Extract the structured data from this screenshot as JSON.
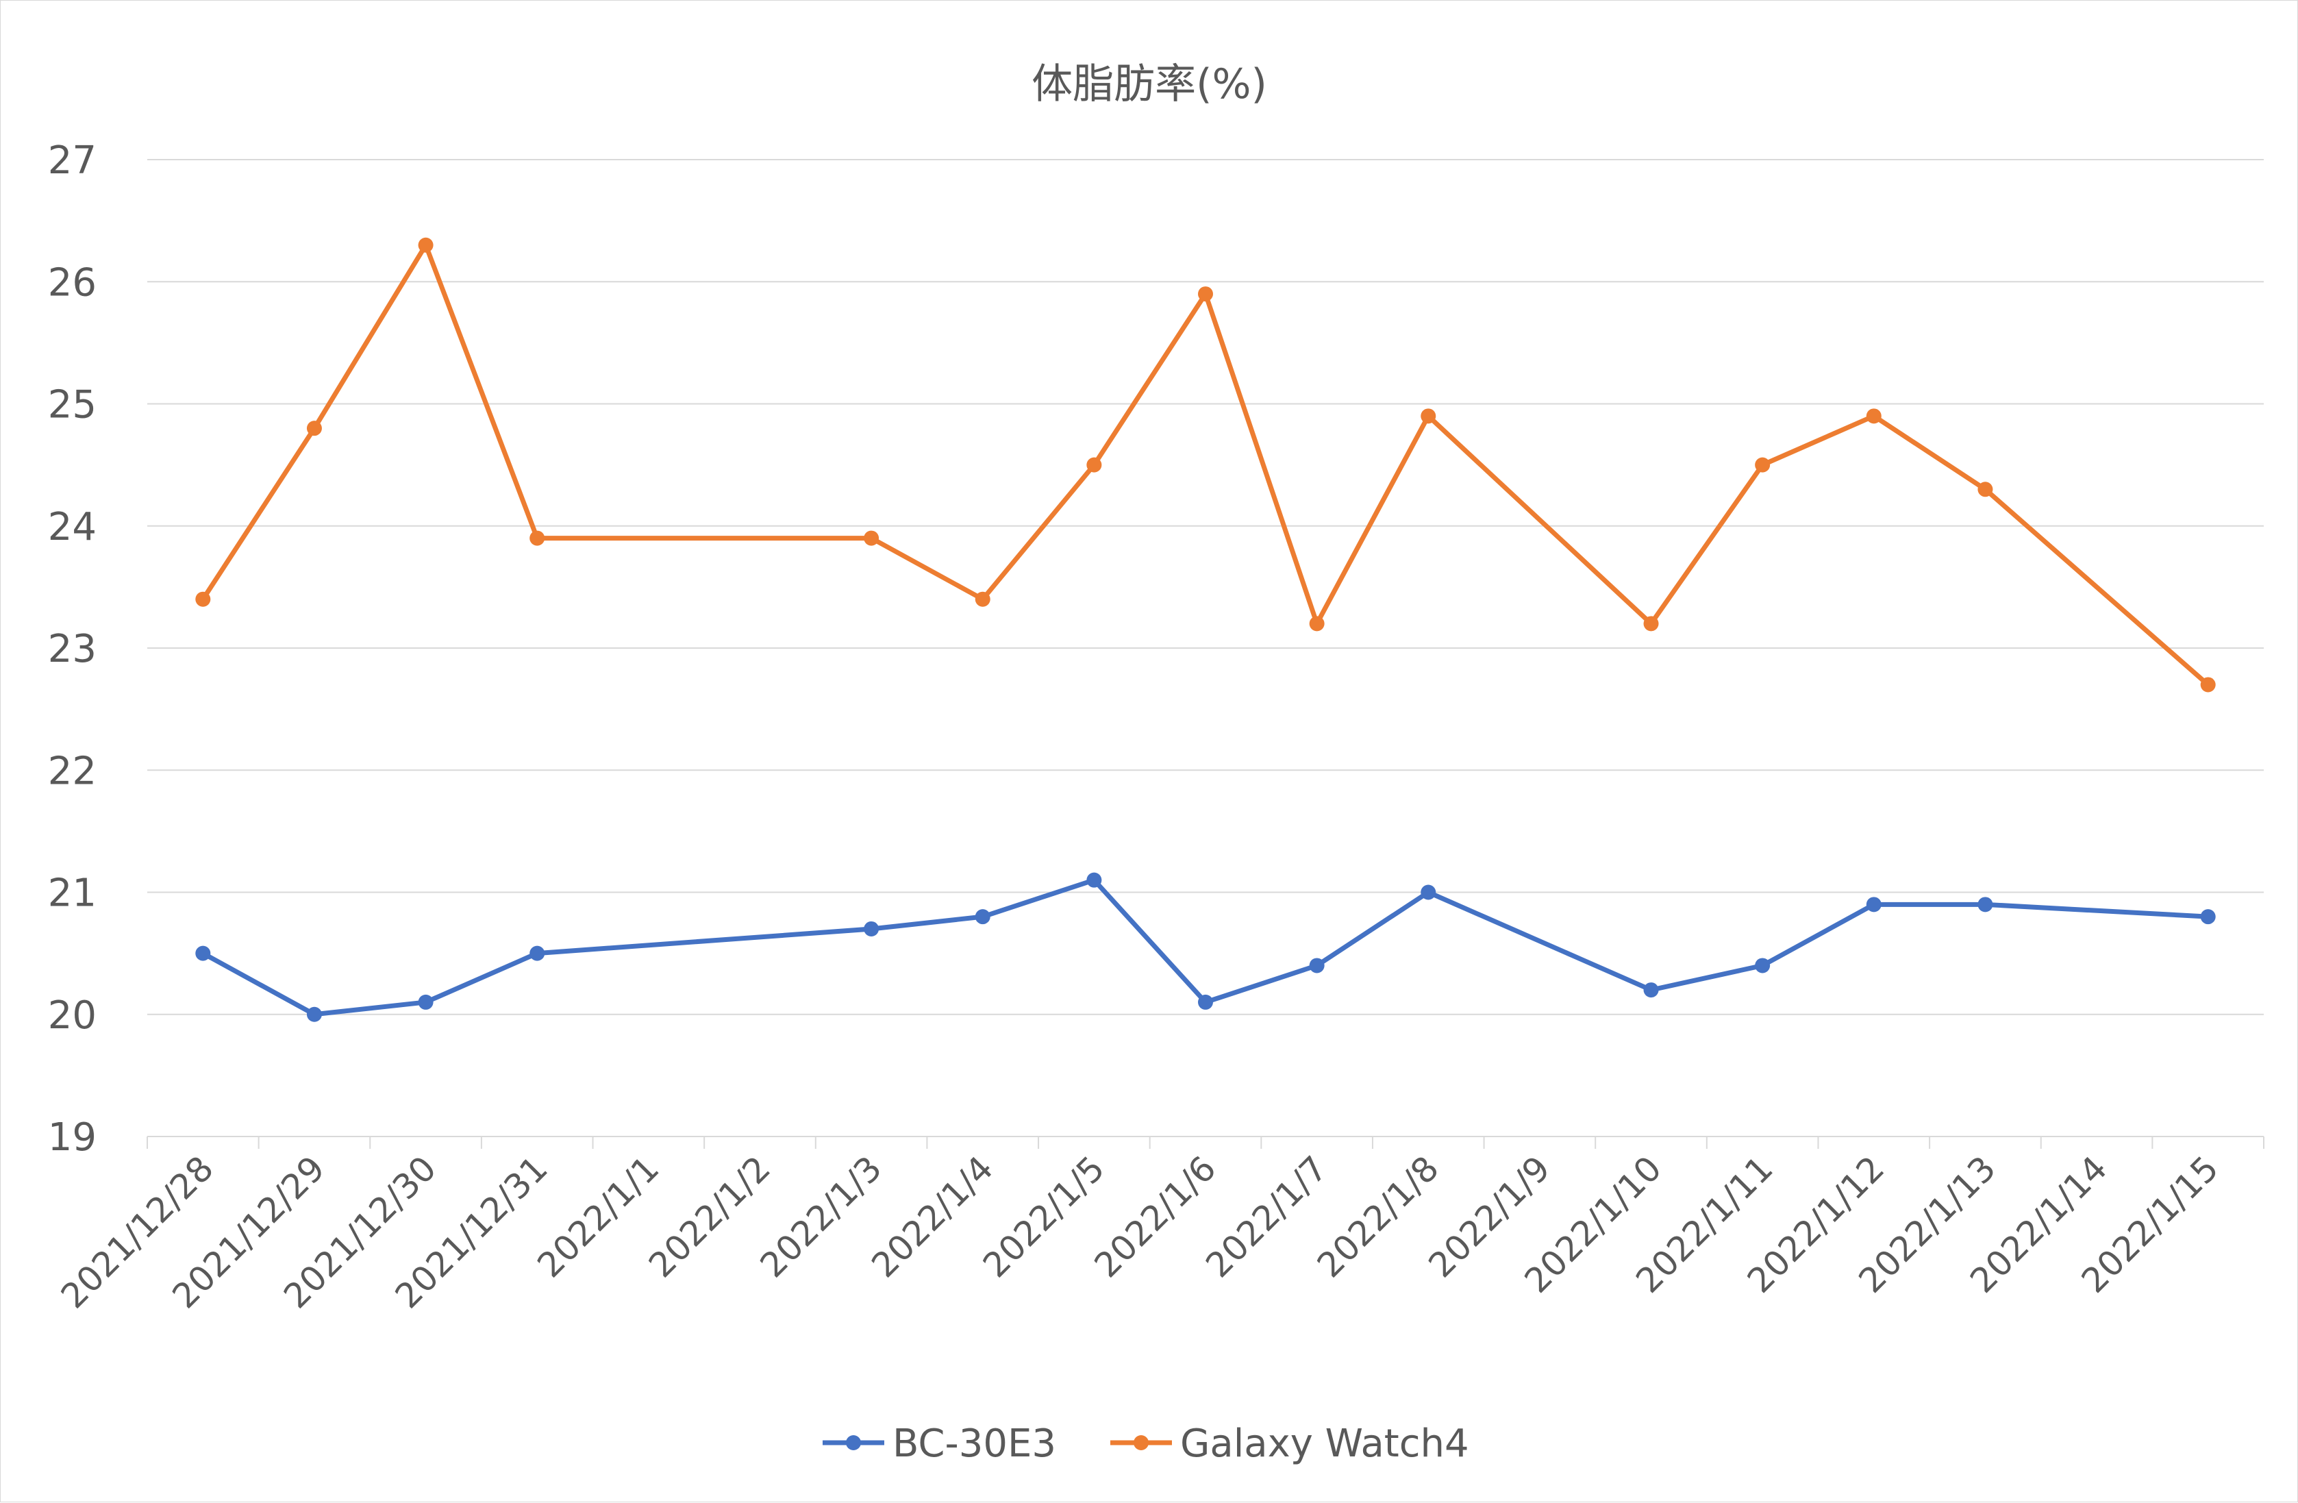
{
  "chart_data": {
    "type": "line",
    "title": "体脂肪率(%)",
    "xlabel": "",
    "ylabel": "",
    "ylim": [
      19,
      27
    ],
    "yticks": [
      "19",
      "20",
      "21",
      "22",
      "23",
      "24",
      "25",
      "26",
      "27"
    ],
    "categories": [
      "2021/12/28",
      "2021/12/29",
      "2021/12/30",
      "2021/12/31",
      "2022/1/1",
      "2022/1/2",
      "2022/1/3",
      "2022/1/4",
      "2022/1/5",
      "2022/1/6",
      "2022/1/7",
      "2022/1/8",
      "2022/1/9",
      "2022/1/10",
      "2022/1/11",
      "2022/1/12",
      "2022/1/13",
      "2022/1/14",
      "2022/1/15"
    ],
    "grid": true,
    "legend_position": "bottom",
    "series": [
      {
        "name": "BC-30E3",
        "color": "#4472c4",
        "values": [
          20.5,
          20.0,
          20.1,
          20.5,
          null,
          null,
          20.7,
          20.8,
          21.1,
          20.1,
          20.4,
          21.0,
          null,
          20.2,
          20.4,
          20.9,
          20.9,
          null,
          20.8
        ]
      },
      {
        "name": "Galaxy Watch4",
        "color": "#ed7d31",
        "values": [
          23.4,
          24.8,
          26.3,
          23.9,
          null,
          null,
          23.9,
          23.4,
          24.5,
          25.9,
          23.2,
          24.9,
          null,
          23.2,
          24.5,
          24.9,
          24.3,
          null,
          22.7
        ]
      }
    ]
  }
}
